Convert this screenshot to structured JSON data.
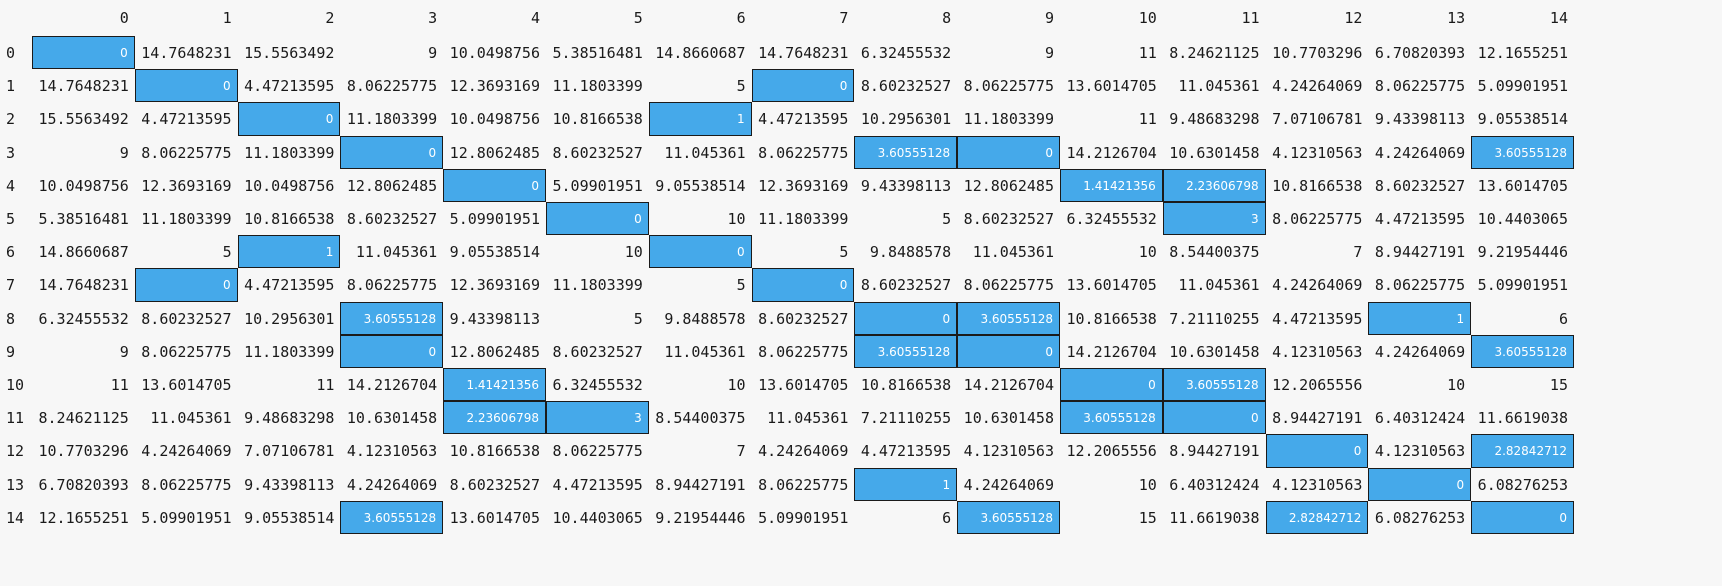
{
  "table": {
    "columns": [
      "0",
      "1",
      "2",
      "3",
      "4",
      "5",
      "6",
      "7",
      "8",
      "9",
      "10",
      "11",
      "12",
      "13",
      "14"
    ],
    "rows": [
      {
        "label": "0",
        "cells": [
          "0",
          "14.7648231",
          "15.5563492",
          "9",
          "10.0498756",
          "5.38516481",
          "14.8660687",
          "14.7648231",
          "6.32455532",
          "9",
          "11",
          "8.24621125",
          "10.7703296",
          "6.70820393",
          "12.1655251"
        ],
        "highlight": [
          0
        ]
      },
      {
        "label": "1",
        "cells": [
          "14.7648231",
          "0",
          "4.47213595",
          "8.06225775",
          "12.3693169",
          "11.1803399",
          "5",
          "0",
          "8.60232527",
          "8.06225775",
          "13.6014705",
          "11.045361",
          "4.24264069",
          "8.06225775",
          "5.09901951"
        ],
        "highlight": [
          1,
          7
        ]
      },
      {
        "label": "2",
        "cells": [
          "15.5563492",
          "4.47213595",
          "0",
          "11.1803399",
          "10.0498756",
          "10.8166538",
          "1",
          "4.47213595",
          "10.2956301",
          "11.1803399",
          "11",
          "9.48683298",
          "7.07106781",
          "9.43398113",
          "9.05538514"
        ],
        "highlight": [
          2,
          6
        ]
      },
      {
        "label": "3",
        "cells": [
          "9",
          "8.06225775",
          "11.1803399",
          "0",
          "12.8062485",
          "8.60232527",
          "11.045361",
          "8.06225775",
          "3.60555128",
          "0",
          "14.2126704",
          "10.6301458",
          "4.12310563",
          "4.24264069",
          "3.60555128"
        ],
        "highlight": [
          3,
          8,
          9,
          14
        ]
      },
      {
        "label": "4",
        "cells": [
          "10.0498756",
          "12.3693169",
          "10.0498756",
          "12.8062485",
          "0",
          "5.09901951",
          "9.05538514",
          "12.3693169",
          "9.43398113",
          "12.8062485",
          "1.41421356",
          "2.23606798",
          "10.8166538",
          "8.60232527",
          "13.6014705"
        ],
        "highlight": [
          4,
          10,
          11
        ]
      },
      {
        "label": "5",
        "cells": [
          "5.38516481",
          "11.1803399",
          "10.8166538",
          "8.60232527",
          "5.09901951",
          "0",
          "10",
          "11.1803399",
          "5",
          "8.60232527",
          "6.32455532",
          "3",
          "8.06225775",
          "4.47213595",
          "10.4403065"
        ],
        "highlight": [
          5,
          11
        ]
      },
      {
        "label": "6",
        "cells": [
          "14.8660687",
          "5",
          "1",
          "11.045361",
          "9.05538514",
          "10",
          "0",
          "5",
          "9.8488578",
          "11.045361",
          "10",
          "8.54400375",
          "7",
          "8.94427191",
          "9.21954446"
        ],
        "highlight": [
          2,
          6
        ]
      },
      {
        "label": "7",
        "cells": [
          "14.7648231",
          "0",
          "4.47213595",
          "8.06225775",
          "12.3693169",
          "11.1803399",
          "5",
          "0",
          "8.60232527",
          "8.06225775",
          "13.6014705",
          "11.045361",
          "4.24264069",
          "8.06225775",
          "5.09901951"
        ],
        "highlight": [
          1,
          7
        ]
      },
      {
        "label": "8",
        "cells": [
          "6.32455532",
          "8.60232527",
          "10.2956301",
          "3.60555128",
          "9.43398113",
          "5",
          "9.8488578",
          "8.60232527",
          "0",
          "3.60555128",
          "10.8166538",
          "7.21110255",
          "4.47213595",
          "1",
          "6"
        ],
        "highlight": [
          3,
          8,
          9,
          13
        ]
      },
      {
        "label": "9",
        "cells": [
          "9",
          "8.06225775",
          "11.1803399",
          "0",
          "12.8062485",
          "8.60232527",
          "11.045361",
          "8.06225775",
          "3.60555128",
          "0",
          "14.2126704",
          "10.6301458",
          "4.12310563",
          "4.24264069",
          "3.60555128"
        ],
        "highlight": [
          3,
          8,
          9,
          14
        ]
      },
      {
        "label": "10",
        "cells": [
          "11",
          "13.6014705",
          "11",
          "14.2126704",
          "1.41421356",
          "6.32455532",
          "10",
          "13.6014705",
          "10.8166538",
          "14.2126704",
          "0",
          "3.60555128",
          "12.2065556",
          "10",
          "15"
        ],
        "highlight": [
          4,
          10,
          11
        ]
      },
      {
        "label": "11",
        "cells": [
          "8.24621125",
          "11.045361",
          "9.48683298",
          "10.6301458",
          "2.23606798",
          "3",
          "8.54400375",
          "11.045361",
          "7.21110255",
          "10.6301458",
          "3.60555128",
          "0",
          "8.94427191",
          "6.40312424",
          "11.6619038"
        ],
        "highlight": [
          4,
          5,
          10,
          11
        ]
      },
      {
        "label": "12",
        "cells": [
          "10.7703296",
          "4.24264069",
          "7.07106781",
          "4.12310563",
          "10.8166538",
          "8.06225775",
          "7",
          "4.24264069",
          "4.47213595",
          "4.12310563",
          "12.2065556",
          "8.94427191",
          "0",
          "4.12310563",
          "2.82842712"
        ],
        "highlight": [
          12,
          14
        ]
      },
      {
        "label": "13",
        "cells": [
          "6.70820393",
          "8.06225775",
          "9.43398113",
          "4.24264069",
          "8.60232527",
          "4.47213595",
          "8.94427191",
          "8.06225775",
          "1",
          "4.24264069",
          "10",
          "6.40312424",
          "4.12310563",
          "0",
          "6.08276253"
        ],
        "highlight": [
          8,
          13
        ]
      },
      {
        "label": "14",
        "cells": [
          "12.1655251",
          "5.09901951",
          "9.05538514",
          "3.60555128",
          "13.6014705",
          "10.4403065",
          "9.21954446",
          "5.09901951",
          "6",
          "3.60555128",
          "15",
          "11.6619038",
          "2.82842712",
          "6.08276253",
          "0"
        ],
        "highlight": [
          3,
          9,
          12,
          14
        ]
      }
    ]
  },
  "colors": {
    "highlight": "#45a9ea",
    "background": "#f7f7f7"
  }
}
